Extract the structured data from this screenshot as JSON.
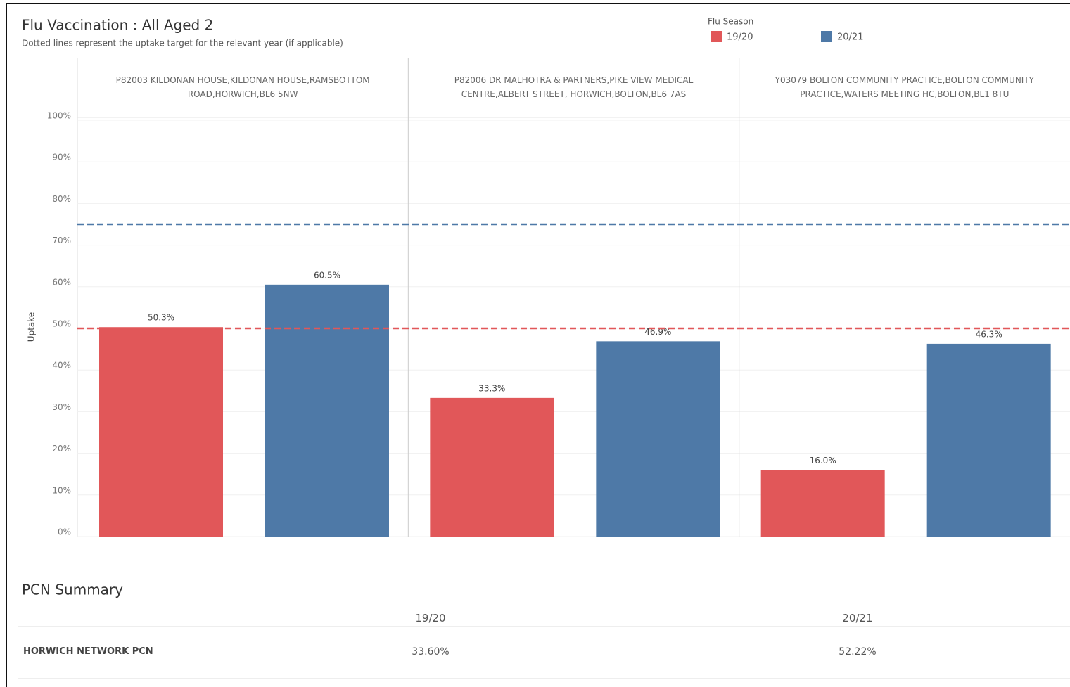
{
  "chart_data": {
    "type": "bar",
    "title": "Flu Vaccination : All Aged 2",
    "subtitle": "Dotted lines represent the uptake target for the relevant year (if applicable)",
    "legend_title": "Flu Season",
    "y_label": "Uptake",
    "categories": [
      "P82003 KILDONAN HOUSE,KILDONAN HOUSE,RAMSBOTTOM ROAD,HORWICH,BL6 5NW",
      "P82006 DR MALHOTRA & PARTNERS,PIKE VIEW MEDICAL CENTRE,ALBERT STREET, HORWICH,BOLTON,BL6 7AS",
      "Y03079 BOLTON COMMUNITY PRACTICE,BOLTON COMMUNITY PRACTICE,WATERS MEETING HC,BOLTON,BL1 8TU"
    ],
    "series": [
      {
        "name": "19/20",
        "color": "#e15759",
        "values": [
          50.3,
          33.3,
          16.0
        ],
        "value_labels": [
          "50.3%",
          "33.3%",
          "16.0%"
        ],
        "target": 50
      },
      {
        "name": "20/21",
        "color": "#4e79a7",
        "values": [
          60.5,
          46.9,
          46.3
        ],
        "value_labels": [
          "60.5%",
          "46.9%",
          "46.3%"
        ],
        "target": 75
      }
    ],
    "ylim": [
      0,
      100
    ],
    "yticks": [
      {
        "value": 0,
        "label": "0%"
      },
      {
        "value": 10,
        "label": "10%"
      },
      {
        "value": 20,
        "label": "20%"
      },
      {
        "value": 30,
        "label": "30%"
      },
      {
        "value": 40,
        "label": "40%"
      },
      {
        "value": 50,
        "label": "50%"
      },
      {
        "value": 60,
        "label": "60%"
      },
      {
        "value": 70,
        "label": "70%"
      },
      {
        "value": 80,
        "label": "80%"
      },
      {
        "value": 90,
        "label": "90%"
      },
      {
        "value": 100,
        "label": "100%"
      }
    ],
    "grid": true
  },
  "summary": {
    "title": "PCN Summary",
    "columns": [
      "19/20",
      "20/21"
    ],
    "rows": [
      [
        "HORWICH NETWORK PCN",
        "33.60%",
        "52.22%"
      ]
    ]
  }
}
